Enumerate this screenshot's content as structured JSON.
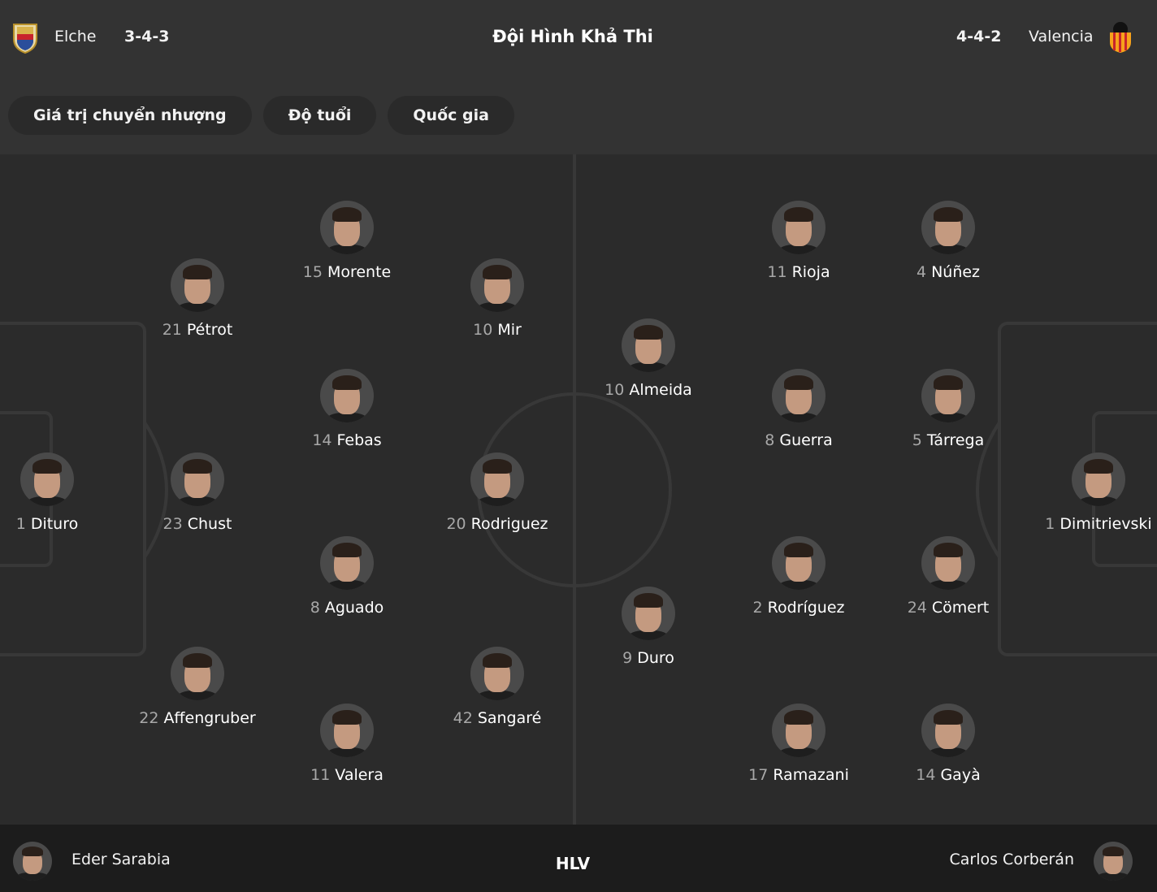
{
  "header": {
    "title": "Đội Hình Khả Thi",
    "home": {
      "name": "Elche",
      "formation": "3-4-3",
      "crest_icon": "elche-crest-icon",
      "crest_colors": [
        "#d8b24a",
        "#c8232c",
        "#2b4e9b"
      ]
    },
    "away": {
      "name": "Valencia",
      "formation": "4-4-2",
      "crest_icon": "valencia-crest-icon",
      "crest_colors": [
        "#f7a21b",
        "#e0e0e0",
        "#111111"
      ]
    }
  },
  "filters": [
    {
      "label": "Giá trị chuyển nhượng"
    },
    {
      "label": "Độ tuổi"
    },
    {
      "label": "Quốc gia"
    }
  ],
  "home_players": [
    {
      "number": "15",
      "name": "Morente"
    },
    {
      "number": "21",
      "name": "Pétrot"
    },
    {
      "number": "10",
      "name": "Mir"
    },
    {
      "number": "14",
      "name": "Febas"
    },
    {
      "number": "1",
      "name": "Dituro"
    },
    {
      "number": "23",
      "name": "Chust"
    },
    {
      "number": "20",
      "name": "Rodriguez"
    },
    {
      "number": "8",
      "name": "Aguado"
    },
    {
      "number": "22",
      "name": "Affengruber"
    },
    {
      "number": "42",
      "name": "Sangaré"
    },
    {
      "number": "11",
      "name": "Valera"
    }
  ],
  "away_players": [
    {
      "number": "11",
      "name": "Rioja"
    },
    {
      "number": "4",
      "name": "Núñez"
    },
    {
      "number": "10",
      "name": "Almeida"
    },
    {
      "number": "8",
      "name": "Guerra"
    },
    {
      "number": "5",
      "name": "Tárrega"
    },
    {
      "number": "1",
      "name": "Dimitrievski"
    },
    {
      "number": "2",
      "name": "Rodríguez"
    },
    {
      "number": "24",
      "name": "Cömert"
    },
    {
      "number": "9",
      "name": "Duro"
    },
    {
      "number": "17",
      "name": "Ramazani"
    },
    {
      "number": "14",
      "name": "Gayà"
    }
  ],
  "footer": {
    "label": "HLV",
    "home_coach": "Eder Sarabia",
    "away_coach": "Carlos Corberán"
  }
}
